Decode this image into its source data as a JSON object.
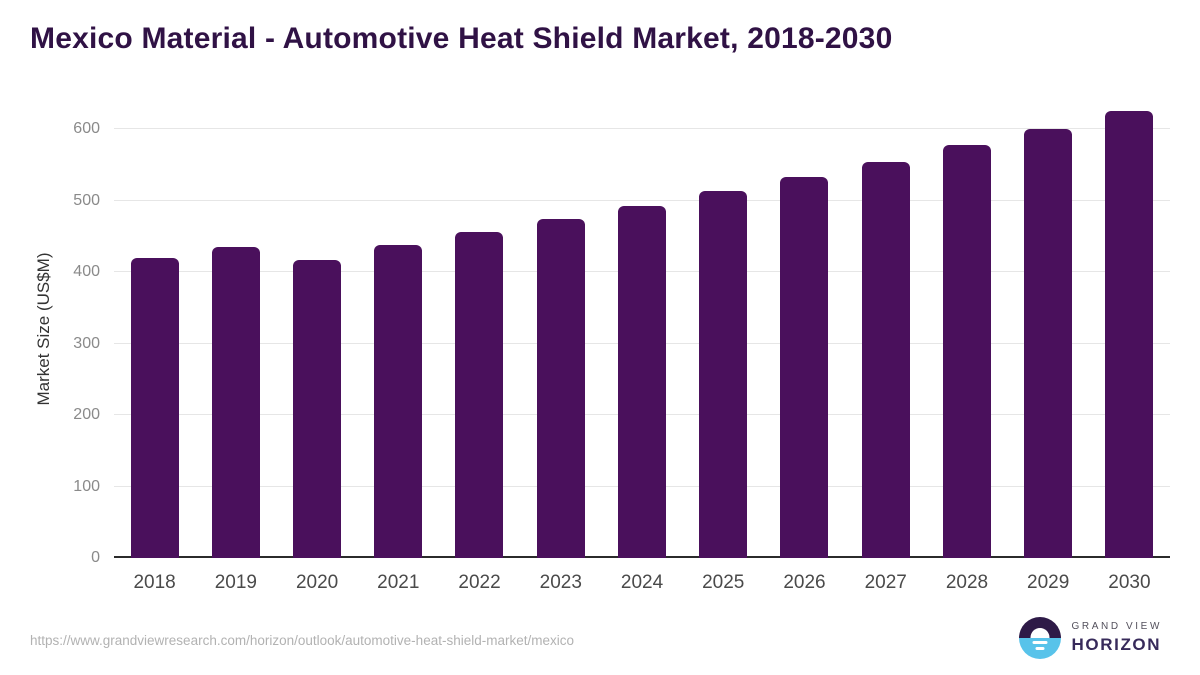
{
  "header": {
    "title": "Mexico Material - Automotive Heat Shield Market, 2018-2030"
  },
  "chart_data": {
    "type": "bar",
    "title": "Mexico Material - Automotive Heat Shield Market, 2018-2030",
    "categories": [
      "2018",
      "2019",
      "2020",
      "2021",
      "2022",
      "2023",
      "2024",
      "2025",
      "2026",
      "2027",
      "2028",
      "2029",
      "2030"
    ],
    "values": [
      420,
      435,
      417,
      438,
      456,
      474,
      493,
      513,
      533,
      554,
      577,
      600,
      625
    ],
    "xlabel": "",
    "ylabel": "Market Size (US$M)",
    "ylim": [
      0,
      640
    ],
    "yticks": [
      0,
      100,
      200,
      300,
      400,
      500,
      600
    ],
    "grid": "horizontal-light",
    "legend": "none",
    "bar_color": "#4a105c"
  },
  "footer": {
    "source_url": "https://www.grandviewresearch.com/horizon/outlook/automotive-heat-shield-market/mexico",
    "logo_line1": "GRAND VIEW",
    "logo_line2": "HORIZON"
  },
  "colors": {
    "title_text": "#301245",
    "bar": "#4a105c",
    "gridline": "#e6e6e6",
    "axis_line": "#2b2b2b",
    "y_tick_text": "#8a8a8a",
    "x_tick_text": "#4a4a4a",
    "url_text": "#b2b2b2",
    "logo_dark_purple": "#2e1a47",
    "logo_light_blue": "#58c3ea",
    "logo_name_text": "#53505c",
    "logo_horizon_text": "#372a5a"
  }
}
